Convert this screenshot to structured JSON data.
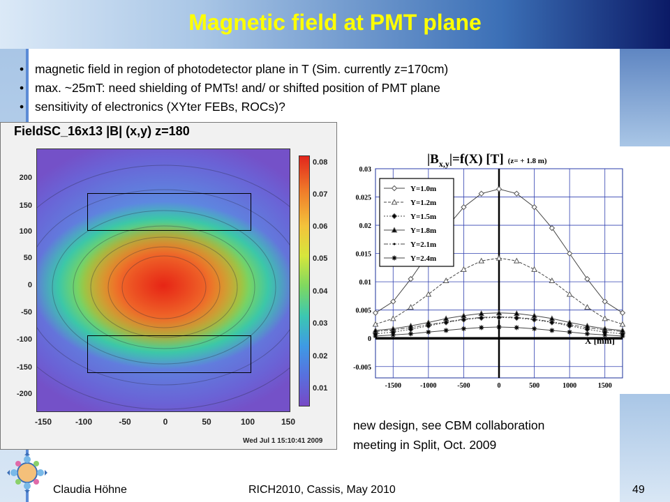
{
  "slide": {
    "title": "Magnetic field at PMT plane",
    "bullets": [
      "magnetic field in region of photodetector plane in T  (Sim. currently z=170cm)",
      "max. ~25mT: need shielding of PMTs! and/ or shifted position of PMT plane",
      "sensitivity of electronics (XYter FEBs, ROCs)?"
    ],
    "note_lines": [
      "new design, see CBM collaboration",
      "meeting in Split, Oct. 2009"
    ],
    "footer": {
      "author": "Claudia Höhne",
      "event": "RICH2010, Cassis, May 2010",
      "page": "49"
    },
    "colors": {
      "title": "#ffff00",
      "header_dark": "#0b1a66",
      "accent": "#5b8bd6"
    }
  },
  "heatmap": {
    "title": "FieldSC_16x13  |B| (x,y) z=180",
    "date": "Wed Jul  1 15:10:41 2009",
    "y_ticks": [
      "200",
      "150",
      "100",
      "50",
      "0",
      "-50",
      "-100",
      "-150",
      "-200"
    ],
    "x_ticks": [
      "-150",
      "-100",
      "-50",
      "0",
      "50",
      "100",
      "150"
    ],
    "colorbar_ticks": [
      "0.08",
      "0.07",
      "0.06",
      "0.05",
      "0.04",
      "0.03",
      "0.02",
      "0.01"
    ]
  },
  "chart_data": {
    "type": "line",
    "title": "|B",
    "title_sub": "x,y",
    "title_tail": "|=f(X) [T]",
    "title_note": "(z= + 1.8 m)",
    "xlabel": "X  [mm]",
    "ylabel": "",
    "xlim": [
      -1750,
      1750
    ],
    "ylim": [
      -0.007,
      0.03
    ],
    "x_ticks": [
      "-1500",
      "-1000",
      "-500",
      "0",
      "500",
      "1000",
      "1500"
    ],
    "y_ticks": [
      "0.03",
      "0.025",
      "0.02",
      "0.015",
      "0.01",
      "0.005",
      "0",
      "-0.005"
    ],
    "x": [
      -1750,
      -1500,
      -1250,
      -1000,
      -750,
      -500,
      -250,
      0,
      250,
      500,
      750,
      1000,
      1250,
      1500,
      1750
    ],
    "series": [
      {
        "name": "Y=1.0m",
        "marker": "diamond",
        "values": [
          0.0045,
          0.0065,
          0.0105,
          0.015,
          0.0195,
          0.0232,
          0.0256,
          0.0264,
          0.0256,
          0.0232,
          0.0195,
          0.015,
          0.0105,
          0.0065,
          0.0045
        ]
      },
      {
        "name": "Y=1.2m",
        "marker": "triangle-open",
        "values": [
          0.0025,
          0.0035,
          0.0055,
          0.0078,
          0.0102,
          0.0122,
          0.0137,
          0.0142,
          0.0137,
          0.0122,
          0.0102,
          0.0078,
          0.0055,
          0.0035,
          0.0025
        ]
      },
      {
        "name": "Y=1.5m",
        "marker": "diamond-filled",
        "values": [
          0.0008,
          0.0011,
          0.0016,
          0.0022,
          0.0028,
          0.0033,
          0.0036,
          0.0037,
          0.0036,
          0.0033,
          0.0028,
          0.0022,
          0.0016,
          0.0011,
          0.0008
        ]
      },
      {
        "name": "Y=1.8m",
        "marker": "triangle-filled",
        "values": [
          0.0014,
          0.0017,
          0.0022,
          0.0028,
          0.0035,
          0.004,
          0.0044,
          0.0045,
          0.0044,
          0.004,
          0.0035,
          0.0028,
          0.0022,
          0.0017,
          0.0014
        ]
      },
      {
        "name": "Y=2.1m",
        "marker": "dot",
        "values": [
          0.0012,
          0.0015,
          0.0019,
          0.0024,
          0.0029,
          0.0034,
          0.0037,
          0.0038,
          0.0037,
          0.0034,
          0.0029,
          0.0024,
          0.0019,
          0.0015,
          0.0012
        ]
      },
      {
        "name": "Y=2.4m",
        "marker": "star",
        "values": [
          0.0004,
          0.0006,
          0.0008,
          0.0011,
          0.0014,
          0.0017,
          0.0019,
          0.002,
          0.0019,
          0.0017,
          0.0014,
          0.0011,
          0.0008,
          0.0006,
          0.0004
        ]
      }
    ]
  }
}
